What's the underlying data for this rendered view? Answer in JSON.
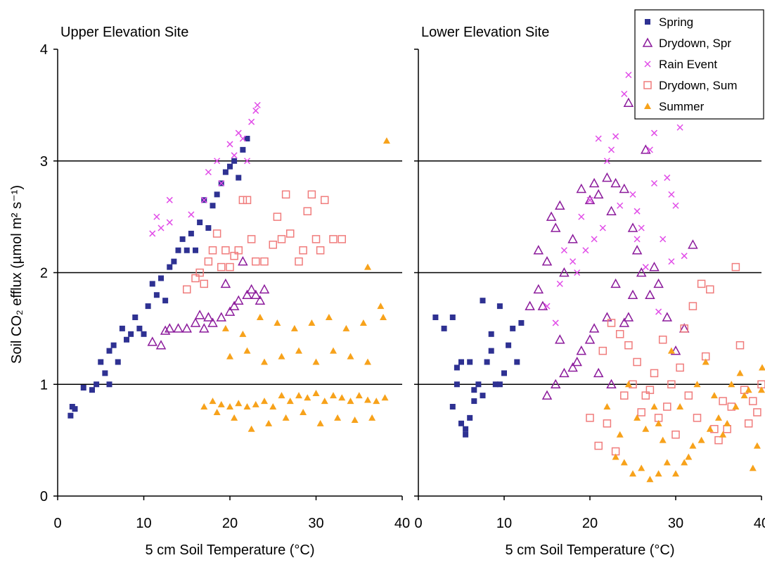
{
  "chart_data": [
    {
      "type": "scatter",
      "title": "Upper Elevation Site",
      "xlabel": "5 cm  Soil Temperature (°C)",
      "ylabel": "Soil CO₂ efflux (µmol m² s⁻¹)",
      "xlim": [
        0,
        40
      ],
      "ylim": [
        0,
        4
      ],
      "xticks": [
        "0",
        "10",
        "20",
        "30",
        "40"
      ],
      "yticks": [
        "0",
        "1",
        "2",
        "3",
        "4"
      ],
      "grid": "horizontal",
      "series": [
        {
          "name": "Spring",
          "x": [
            1.5,
            1.7,
            2.0,
            3.0,
            4.0,
            4.5,
            5.0,
            5.5,
            6.0,
            6.0,
            6.5,
            7.0,
            7.5,
            8.0,
            8.5,
            9.0,
            9.5,
            10.0,
            10.5,
            11.0,
            11.5,
            12.0,
            12.5,
            13.0,
            13.5,
            14.0,
            14.5,
            15.0,
            15.5,
            16.0,
            16.5,
            17.0,
            17.5,
            18.0,
            18.5,
            19.0,
            19.5,
            20.0,
            20.5,
            21.0,
            21.5,
            22.0
          ],
          "y": [
            0.72,
            0.8,
            0.78,
            0.97,
            0.95,
            1.0,
            1.2,
            1.1,
            1.3,
            1.0,
            1.35,
            1.2,
            1.5,
            1.4,
            1.45,
            1.6,
            1.5,
            1.45,
            1.7,
            1.9,
            1.8,
            1.95,
            1.75,
            2.05,
            2.1,
            2.2,
            2.3,
            2.2,
            2.35,
            2.2,
            2.45,
            2.65,
            2.4,
            2.6,
            2.7,
            2.8,
            2.9,
            2.95,
            3.0,
            2.85,
            3.1,
            3.2
          ]
        },
        {
          "name": "Drydown, Spr",
          "x": [
            11.0,
            12.0,
            12.5,
            13.0,
            14.0,
            15.0,
            16.0,
            17.0,
            18.0,
            19.0,
            20.0,
            20.5,
            21.0,
            22.0,
            22.5,
            23.0,
            23.5,
            24.0,
            21.5,
            19.5,
            17.5,
            16.5
          ],
          "y": [
            1.38,
            1.35,
            1.48,
            1.5,
            1.5,
            1.5,
            1.55,
            1.5,
            1.55,
            1.6,
            1.65,
            1.7,
            1.75,
            1.8,
            1.85,
            1.8,
            1.75,
            1.85,
            2.1,
            1.9,
            1.6,
            1.62
          ]
        },
        {
          "name": "Rain Event",
          "x": [
            11.0,
            11.5,
            12.0,
            13.0,
            13.0,
            15.5,
            17.0,
            17.5,
            18.5,
            19.0,
            20.0,
            20.5,
            21.0,
            21.5,
            22.0,
            22.5,
            23.0,
            23.2
          ],
          "y": [
            2.35,
            2.5,
            2.4,
            2.45,
            2.65,
            2.52,
            2.65,
            2.9,
            3.0,
            2.8,
            3.15,
            3.05,
            3.25,
            3.2,
            3.0,
            3.35,
            3.45,
            3.5
          ]
        },
        {
          "name": "Drydown, Sum",
          "x": [
            15.0,
            16.0,
            17.0,
            17.5,
            18.0,
            19.0,
            19.5,
            20.0,
            20.5,
            21.0,
            22.0,
            22.5,
            23.0,
            24.0,
            25.0,
            25.5,
            26.0,
            26.5,
            27.0,
            28.0,
            28.5,
            29.0,
            29.5,
            30.0,
            30.5,
            31.0,
            32.0,
            33.0,
            21.5,
            18.5,
            16.5
          ],
          "y": [
            1.85,
            1.95,
            1.9,
            2.1,
            2.2,
            2.05,
            2.2,
            2.05,
            2.15,
            2.2,
            2.65,
            2.3,
            2.1,
            2.1,
            2.25,
            2.5,
            2.3,
            2.7,
            2.35,
            2.1,
            2.2,
            2.55,
            2.7,
            2.3,
            2.2,
            2.65,
            2.3,
            2.3,
            2.65,
            2.35,
            2.0
          ]
        },
        {
          "name": "Summer",
          "x": [
            17.0,
            18.0,
            19.0,
            20.0,
            21.0,
            22.0,
            23.0,
            24.0,
            25.0,
            26.0,
            27.0,
            28.0,
            29.0,
            30.0,
            31.0,
            32.0,
            33.0,
            34.0,
            35.0,
            36.0,
            37.0,
            38.0,
            18.5,
            20.5,
            22.5,
            24.5,
            26.5,
            28.5,
            30.5,
            32.5,
            34.5,
            36.5,
            19.5,
            21.5,
            23.5,
            25.5,
            27.5,
            29.5,
            31.5,
            33.5,
            35.5,
            37.5,
            20.0,
            22.0,
            24.0,
            26.0,
            28.0,
            30.0,
            32.0,
            34.0,
            36.0,
            38.2,
            37.8,
            36.0
          ],
          "y": [
            0.8,
            0.85,
            0.82,
            0.8,
            0.83,
            0.8,
            0.82,
            0.85,
            0.8,
            0.9,
            0.85,
            0.9,
            0.88,
            0.92,
            0.85,
            0.9,
            0.88,
            0.85,
            0.9,
            0.86,
            0.85,
            0.88,
            0.75,
            0.7,
            0.6,
            0.65,
            0.7,
            0.75,
            0.65,
            0.7,
            0.68,
            0.7,
            1.5,
            1.45,
            1.6,
            1.55,
            1.5,
            1.55,
            1.6,
            1.5,
            1.55,
            1.7,
            1.25,
            1.3,
            1.2,
            1.25,
            1.3,
            1.2,
            1.3,
            1.25,
            1.2,
            3.18,
            1.6,
            2.05
          ]
        }
      ]
    },
    {
      "type": "scatter",
      "title": "Lower Elevation Site",
      "xlabel": "5 cm  Soil Temperature (°C)",
      "xlim": [
        0,
        40
      ],
      "ylim": [
        0,
        4
      ],
      "xticks": [
        "0",
        "10",
        "20",
        "30",
        "40"
      ],
      "grid": "horizontal",
      "series": [
        {
          "name": "Spring",
          "x": [
            2.0,
            3.0,
            4.0,
            4.5,
            5.0,
            5.0,
            5.5,
            6.0,
            6.5,
            7.0,
            7.5,
            8.0,
            8.5,
            9.0,
            9.5,
            10.0,
            10.5,
            11.0,
            11.5,
            12.0,
            4.5,
            5.5,
            6.5,
            7.5,
            8.5,
            9.5,
            4.0,
            6.0
          ],
          "y": [
            1.6,
            1.5,
            1.6,
            1.0,
            0.65,
            1.2,
            0.55,
            0.7,
            0.85,
            1.0,
            1.75,
            1.2,
            1.3,
            1.0,
            1.7,
            1.1,
            1.35,
            1.5,
            1.2,
            1.55,
            1.15,
            0.6,
            0.95,
            0.9,
            1.45,
            1.0,
            0.8,
            1.2
          ]
        },
        {
          "name": "Drydown, Spr",
          "x": [
            13.0,
            14.0,
            14.0,
            15.0,
            15.5,
            16.0,
            16.5,
            17.0,
            18.0,
            19.0,
            20.0,
            20.5,
            21.0,
            22.0,
            22.5,
            23.0,
            24.0,
            24.5,
            25.0,
            25.5,
            26.0,
            26.5,
            27.0,
            27.5,
            28.0,
            29.0,
            30.0,
            31.0,
            32.0,
            15.0,
            16.0,
            17.0,
            18.0,
            19.0,
            20.0,
            21.0,
            22.0,
            23.0,
            24.0,
            25.0,
            14.5,
            16.5,
            18.5,
            20.5,
            22.5,
            24.5
          ],
          "y": [
            1.7,
            1.85,
            2.2,
            2.1,
            2.5,
            2.4,
            2.6,
            2.0,
            2.3,
            2.75,
            2.65,
            2.8,
            2.7,
            2.85,
            2.55,
            2.8,
            2.75,
            3.52,
            2.4,
            2.2,
            2.0,
            3.1,
            1.8,
            2.05,
            1.9,
            1.6,
            1.3,
            1.5,
            2.25,
            0.9,
            1.0,
            1.1,
            1.15,
            1.3,
            1.4,
            1.1,
            1.6,
            1.9,
            1.55,
            1.8,
            1.7,
            1.4,
            1.2,
            1.5,
            1.0,
            1.6
          ]
        },
        {
          "name": "Rain Event",
          "x": [
            15.0,
            16.0,
            16.5,
            17.0,
            18.0,
            18.5,
            19.0,
            20.0,
            20.5,
            21.0,
            22.0,
            22.5,
            23.0,
            24.0,
            24.5,
            25.0,
            25.5,
            26.0,
            26.5,
            27.0,
            27.5,
            28.0,
            28.5,
            29.0,
            29.5,
            30.0,
            30.5,
            31.0,
            19.5,
            21.5,
            23.5,
            25.5,
            27.5,
            29.5
          ],
          "y": [
            1.7,
            1.55,
            1.9,
            2.2,
            2.1,
            2.0,
            2.5,
            2.65,
            2.3,
            3.2,
            3.0,
            3.1,
            3.22,
            3.6,
            3.77,
            2.7,
            2.3,
            2.4,
            2.05,
            3.1,
            3.25,
            1.65,
            2.3,
            2.85,
            2.7,
            2.6,
            3.3,
            2.15,
            2.2,
            2.4,
            2.6,
            2.55,
            2.8,
            2.1
          ]
        },
        {
          "name": "Drydown, Sum",
          "x": [
            20.0,
            21.0,
            22.0,
            23.0,
            24.0,
            25.0,
            26.0,
            27.0,
            28.0,
            29.0,
            30.0,
            31.0,
            32.0,
            33.0,
            34.0,
            35.0,
            36.0,
            37.0,
            38.0,
            39.0,
            40.0,
            21.5,
            23.5,
            25.5,
            27.5,
            29.5,
            31.5,
            33.5,
            35.5,
            37.5,
            39.5,
            22.5,
            24.5,
            26.5,
            28.5,
            30.5,
            32.5,
            34.5,
            36.5,
            38.5
          ],
          "y": [
            0.7,
            0.45,
            0.65,
            0.4,
            0.9,
            1.0,
            0.75,
            0.95,
            0.7,
            0.8,
            0.55,
            1.5,
            1.7,
            1.9,
            1.85,
            0.5,
            0.6,
            2.05,
            0.95,
            0.85,
            1.0,
            1.3,
            1.45,
            1.2,
            1.1,
            1.0,
            0.9,
            1.25,
            0.85,
            1.35,
            0.75,
            1.55,
            1.35,
            0.9,
            1.4,
            1.15,
            0.7,
            0.6,
            0.8,
            0.65
          ]
        },
        {
          "name": "Summer",
          "x": [
            22.0,
            23.0,
            24.0,
            25.0,
            26.0,
            27.0,
            28.0,
            29.0,
            30.0,
            31.0,
            32.0,
            33.0,
            34.0,
            35.0,
            36.0,
            37.0,
            38.0,
            39.0,
            40.0,
            41.0,
            24.5,
            26.5,
            28.5,
            30.5,
            32.5,
            34.5,
            36.5,
            38.5,
            25.5,
            27.5,
            29.5,
            31.5,
            33.5,
            35.5,
            37.5,
            39.5,
            23.5,
            28.0
          ],
          "y": [
            0.8,
            0.35,
            0.3,
            0.2,
            0.25,
            0.15,
            0.2,
            0.3,
            0.2,
            0.3,
            0.45,
            0.5,
            0.6,
            0.7,
            0.65,
            0.8,
            0.9,
            0.25,
            0.95,
            1.15,
            1.0,
            0.6,
            0.5,
            0.8,
            1.0,
            0.9,
            1.0,
            0.95,
            0.7,
            0.8,
            1.3,
            0.35,
            1.2,
            0.55,
            1.1,
            0.45,
            0.55,
            0.65
          ]
        }
      ]
    }
  ],
  "legend": {
    "items": [
      {
        "label": "Spring",
        "marker": "square",
        "color": "#2E3192"
      },
      {
        "label": "Drydown, Spr",
        "marker": "open-triangle",
        "color": "#8B1A9B"
      },
      {
        "label": "Rain Event",
        "marker": "cross",
        "color": "#E14DE8"
      },
      {
        "label": "Drydown, Sum",
        "marker": "open-square",
        "color": "#F07C7C"
      },
      {
        "label": "Summer",
        "marker": "triangle",
        "color": "#F7A21B"
      }
    ]
  }
}
